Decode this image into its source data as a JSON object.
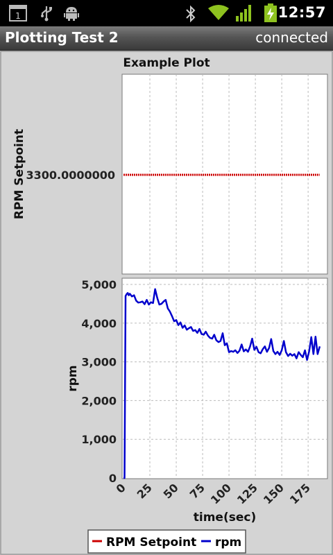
{
  "status_bar": {
    "time": "12:57",
    "icons": [
      "notification-count-icon",
      "usb-icon",
      "android-debug-icon",
      "bluetooth-icon",
      "wifi-icon",
      "signal-icon",
      "battery-charging-icon"
    ],
    "notification_count": "1"
  },
  "app": {
    "title": "Plotting Test 2",
    "connection_status": "connected"
  },
  "chart_data": {
    "type": "line",
    "title": "Example Plot",
    "xlabel": "time(sec)",
    "x_ticks": [
      "0",
      "25",
      "50",
      "75",
      "100",
      "125",
      "150",
      "175"
    ],
    "xlim": [
      0,
      192
    ],
    "grid": true,
    "legend_position": "bottom",
    "legend": [
      {
        "name": "RPM Setpoint",
        "color": "#cc0000"
      },
      {
        "name": "rpm",
        "color": "#0000cc"
      }
    ],
    "panels": [
      {
        "ylabel": "RPM Setpoint",
        "y_ticks": [
          "3300.0000000"
        ],
        "series": [
          {
            "name": "RPM Setpoint",
            "color": "#cc0000",
            "x": [
              0,
              186
            ],
            "y": [
              3300,
              3300
            ]
          }
        ]
      },
      {
        "ylabel": "rpm",
        "y_ticks": [
          "0",
          "1,000",
          "2,000",
          "3,000",
          "4,000",
          "5,000"
        ],
        "ylim": [
          0,
          5000
        ],
        "series": [
          {
            "name": "rpm",
            "color": "#0000cc",
            "x": [
              0,
              1,
              2,
              3,
              4,
              5,
              6,
              8,
              10,
              12,
              14,
              16,
              18,
              20,
              22,
              24,
              26,
              28,
              30,
              32,
              34,
              36,
              38,
              40,
              42,
              44,
              46,
              48,
              50,
              52,
              54,
              56,
              58,
              60,
              62,
              64,
              66,
              68,
              70,
              72,
              74,
              76,
              78,
              80,
              82,
              84,
              86,
              88,
              90,
              92,
              94,
              96,
              98,
              100,
              102,
              104,
              106,
              108,
              110,
              112,
              114,
              116,
              118,
              120,
              122,
              124,
              126,
              128,
              130,
              132,
              134,
              136,
              138,
              140,
              142,
              144,
              146,
              148,
              150,
              152,
              154,
              156,
              158,
              160,
              162,
              164,
              166,
              168,
              170,
              172,
              174,
              176,
              178,
              180,
              182,
              184,
              186
            ],
            "y": [
              0,
              0,
              4700,
              4750,
              4780,
              4720,
              4760,
              4690,
              4720,
              4580,
              4530,
              4540,
              4560,
              4490,
              4600,
              4480,
              4540,
              4520,
              4880,
              4650,
              4480,
              4500,
              4560,
              4600,
              4380,
              4300,
              4180,
              4050,
              4080,
              3950,
              4020,
              3880,
              3940,
              3830,
              3870,
              3900,
              3800,
              3820,
              3750,
              3850,
              3720,
              3700,
              3780,
              3680,
              3620,
              3600,
              3700,
              3560,
              3510,
              3540,
              3740,
              3430,
              3480,
              3250,
              3280,
              3260,
              3300,
              3230,
              3290,
              3450,
              3270,
              3320,
              3260,
              3400,
              3600,
              3310,
              3390,
              3250,
              3220,
              3330,
              3400,
              3260,
              3360,
              3590,
              3280,
              3200,
              3260,
              3180,
              3300,
              3540,
              3250,
              3150,
              3210,
              3160,
              3200,
              3090,
              3250,
              3180,
              3120,
              3300,
              3050,
              3280,
              3640,
              3200,
              3650,
              3200,
              3400
            ]
          }
        ]
      }
    ]
  }
}
